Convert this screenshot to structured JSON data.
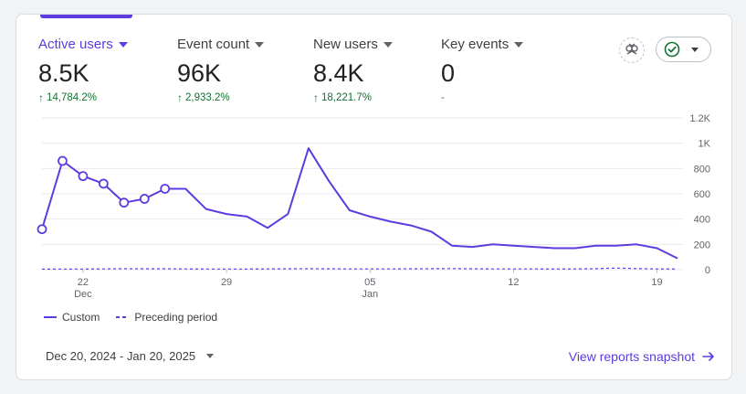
{
  "metrics": [
    {
      "label": "Active users",
      "value": "8.5K",
      "change": "14,784.2%",
      "trend": "up"
    },
    {
      "label": "Event count",
      "value": "96K",
      "change": "2,933.2%",
      "trend": "up"
    },
    {
      "label": "New users",
      "value": "8.4K",
      "change": "18,221.7%",
      "trend": "up"
    },
    {
      "label": "Key events",
      "value": "0",
      "change": "-",
      "trend": "none"
    }
  ],
  "icons": {
    "insights": "insights-icon",
    "status": "check-circle-icon",
    "link_arrow": "arrow-right-icon"
  },
  "colors": {
    "accent": "#5e3be0",
    "positive": "#137333",
    "gridline": "#e8eaed"
  },
  "chart_data": {
    "type": "line",
    "x": [
      "Dec 20",
      "Dec 21",
      "Dec 22",
      "Dec 23",
      "Dec 24",
      "Dec 25",
      "Dec 26",
      "Dec 27",
      "Dec 28",
      "Dec 29",
      "Dec 30",
      "Dec 31",
      "Jan 1",
      "Jan 2",
      "Jan 3",
      "Jan 4",
      "Jan 5",
      "Jan 6",
      "Jan 7",
      "Jan 8",
      "Jan 9",
      "Jan 10",
      "Jan 11",
      "Jan 12",
      "Jan 13",
      "Jan 14",
      "Jan 15",
      "Jan 16",
      "Jan 17",
      "Jan 18",
      "Jan 19",
      "Jan 20"
    ],
    "series": [
      {
        "name": "Custom",
        "style": "solid",
        "values": [
          320,
          860,
          740,
          680,
          530,
          560,
          640,
          640,
          480,
          440,
          420,
          330,
          440,
          960,
          700,
          470,
          420,
          380,
          350,
          300,
          190,
          180,
          200,
          190,
          180,
          170,
          170,
          190,
          190,
          200,
          170,
          90
        ]
      },
      {
        "name": "Preceding period",
        "style": "dashed",
        "values": [
          4,
          5,
          5,
          6,
          8,
          7,
          7,
          6,
          5,
          5,
          5,
          6,
          7,
          8,
          7,
          6,
          6,
          6,
          7,
          8,
          9,
          7,
          6,
          6,
          6,
          5,
          6,
          8,
          13,
          9,
          6,
          5
        ]
      }
    ],
    "marked_points": [
      0,
      1,
      2,
      3,
      4,
      5,
      6
    ],
    "x_ticks": [
      {
        "index": 2,
        "label": "22",
        "sublabel": "Dec"
      },
      {
        "index": 9,
        "label": "29",
        "sublabel": ""
      },
      {
        "index": 16,
        "label": "05",
        "sublabel": "Jan"
      },
      {
        "index": 23,
        "label": "12",
        "sublabel": ""
      },
      {
        "index": 30,
        "label": "19",
        "sublabel": ""
      }
    ],
    "y_ticks": [
      {
        "value": 0,
        "label": "0"
      },
      {
        "value": 200,
        "label": "200"
      },
      {
        "value": 400,
        "label": "400"
      },
      {
        "value": 600,
        "label": "600"
      },
      {
        "value": 800,
        "label": "800"
      },
      {
        "value": 1000,
        "label": "1K"
      },
      {
        "value": 1200,
        "label": "1.2K"
      }
    ],
    "ylim": [
      0,
      1200
    ],
    "grid": true,
    "legend_position": "bottom-left"
  },
  "legend": {
    "custom": "Custom",
    "preceding": "Preceding period"
  },
  "footer": {
    "date_range": "Dec 20, 2024 - Jan 20, 2025",
    "snapshot_link": "View reports snapshot"
  }
}
